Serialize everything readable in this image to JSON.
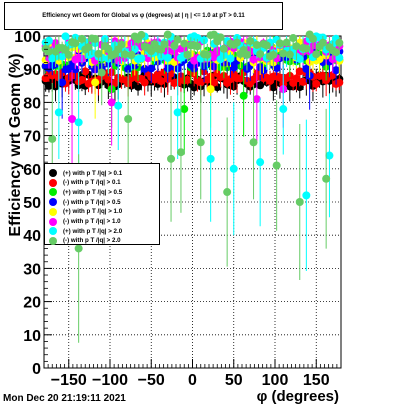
{
  "title": "Efficiency wrt Geom for Global vs φ (degrees) at | η | <= 1.0 at pT > 0.11",
  "timestamp": "Mon Dec 20 21:19:11 2021",
  "chart_data": {
    "type": "scatter",
    "title": "Efficiency wrt Geom for Global vs φ (degrees) at | η | <= 1.0 at pT > 0.11",
    "xlabel": "φ (degrees)",
    "ylabel": "Efficiency wrt Geom (%)",
    "xlim": [
      -180,
      180
    ],
    "ylim": [
      0,
      100
    ],
    "x_ticks": [
      "−150",
      "−100",
      "−50",
      "0",
      "50",
      "100",
      "150"
    ],
    "x_tick_values": [
      -150,
      -100,
      -50,
      0,
      50,
      100,
      150
    ],
    "y_ticks": [
      "0",
      "10",
      "20",
      "30",
      "40",
      "50",
      "60",
      "70",
      "80",
      "90",
      "100"
    ],
    "y_tick_values": [
      0,
      10,
      20,
      30,
      40,
      50,
      60,
      70,
      80,
      90,
      100
    ],
    "grid": true,
    "legend_position": "middle-left",
    "series": [
      {
        "name": "(+) with p T /|q| > 0.1",
        "color": "#000000",
        "level": 86.5,
        "spread": 2.0,
        "dips": []
      },
      {
        "name": "(-) with p T /|q| > 0.1",
        "color": "#ff0000",
        "level": 87.5,
        "spread": 2.0,
        "dips": []
      },
      {
        "name": "(+) with p T /|q| > 0.5",
        "color": "#00ee00",
        "level": 93.5,
        "spread": 3.0,
        "dips": [
          [
            -100,
            84
          ],
          [
            -10,
            78
          ],
          [
            60,
            82
          ]
        ]
      },
      {
        "name": "(-) with p T /|q| > 0.5",
        "color": "#0000ff",
        "level": 92.5,
        "spread": 3.0,
        "dips": [
          [
            -160,
            86
          ],
          [
            140,
            88
          ]
        ]
      },
      {
        "name": "(+) with p T /|q| > 1.0",
        "color": "#ffff00",
        "level": 95.0,
        "spread": 3.0,
        "dips": [
          [
            -120,
            86
          ],
          [
            20,
            84
          ]
        ]
      },
      {
        "name": "(-) with p T /|q| > 1.0",
        "color": "#ff00ff",
        "level": 95.5,
        "spread": 3.0,
        "dips": [
          [
            -147,
            75
          ],
          [
            -100,
            80
          ],
          [
            76,
            81
          ],
          [
            110,
            84
          ]
        ]
      },
      {
        "name": "(+) with p T /|q| > 2.0",
        "color": "#00ffff",
        "level": 96.5,
        "spread": 3.5,
        "dips": [
          [
            -162,
            77
          ],
          [
            -137,
            74
          ],
          [
            -90,
            79
          ],
          [
            -20,
            77
          ],
          [
            20,
            63
          ],
          [
            50,
            60
          ],
          [
            80,
            62
          ],
          [
            108,
            78
          ],
          [
            137,
            52
          ],
          [
            165,
            64
          ]
        ]
      },
      {
        "name": "(-) with p T /|q| > 2.0",
        "color": "#66cc66",
        "level": 97.0,
        "spread": 3.5,
        "dips": [
          [
            -170,
            69
          ],
          [
            -140,
            36
          ],
          [
            -110,
            89
          ],
          [
            -79,
            75
          ],
          [
            -25,
            63
          ],
          [
            -15,
            65
          ],
          [
            10,
            68
          ],
          [
            43,
            53
          ],
          [
            75,
            68
          ],
          [
            102,
            61
          ],
          [
            131,
            50
          ],
          [
            160,
            57
          ]
        ]
      }
    ]
  }
}
